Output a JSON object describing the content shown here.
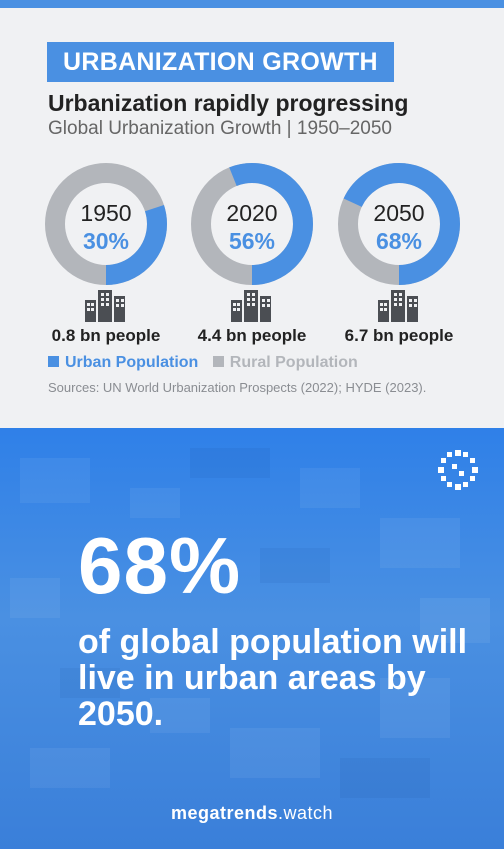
{
  "header": {
    "tag": "URBANIZATION GROWTH",
    "title": "Urbanization rapidly progressing",
    "subtitle": "Global Urbanization Growth | 1950–2050"
  },
  "chart_data": {
    "type": "pie",
    "title": "Global Urbanization Growth | 1950–2050",
    "series": [
      {
        "name": "Urban Population",
        "color": "#4a90e2"
      },
      {
        "name": "Rural Population",
        "color": "#b3b6bb"
      }
    ],
    "donuts": [
      {
        "year": "1950",
        "urban_label": "30%",
        "urban_pct": 30,
        "people": "0.8 bn people"
      },
      {
        "year": "2020",
        "urban_label": "56%",
        "urban_pct": 56,
        "people": "4.4 bn people"
      },
      {
        "year": "2050",
        "urban_label": "68%",
        "urban_pct": 68,
        "people": "6.7 bn people"
      }
    ]
  },
  "legend": {
    "urban": "Urban Population",
    "rural": "Rural Population"
  },
  "sources": "Sources: UN World Urbanization Prospects (2022); HYDE (2023).",
  "highlight": {
    "number": "68%",
    "text": "of global population will live in urban areas by 2050."
  },
  "brand": {
    "bold": "megatrends",
    "light": ".watch"
  },
  "colors": {
    "accent": "#4a90e2",
    "rural": "#b3b6bb"
  },
  "icons": {
    "city": "buildings-icon",
    "logo": "megatrends-logo-icon"
  }
}
